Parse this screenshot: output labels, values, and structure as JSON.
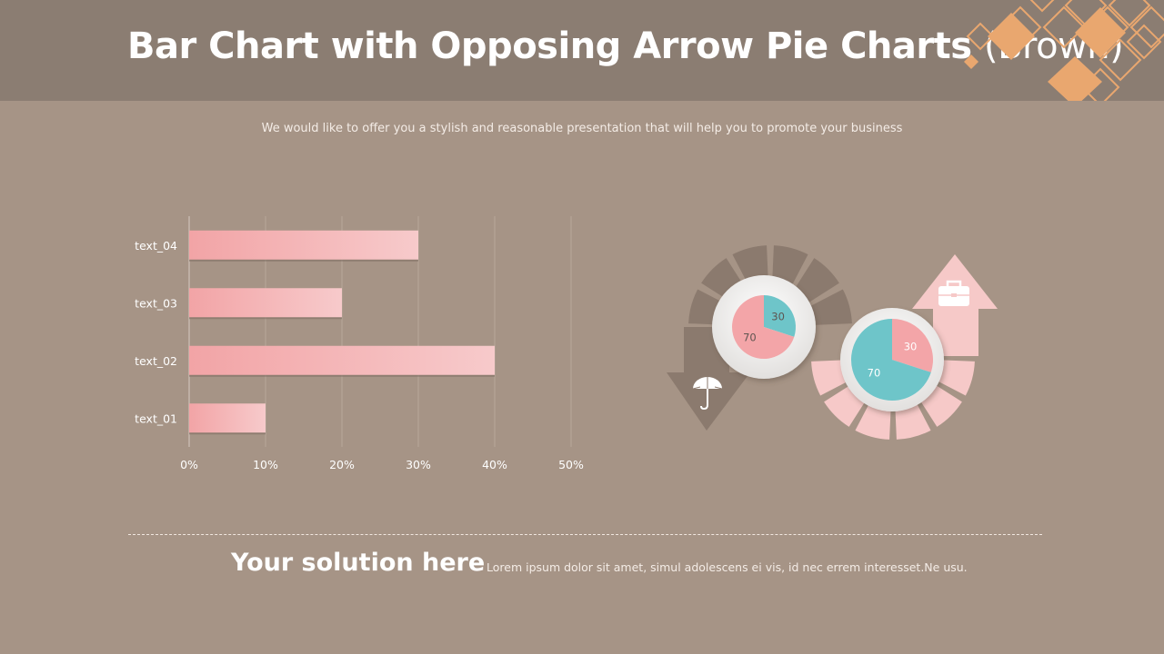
{
  "header": {
    "title_main": "Bar Chart with Opposing Arrow Pie Charts",
    "title_suffix": "(Brown)",
    "subtitle": "We would like to offer you a stylish and reasonable presentation that will help you to promote your business"
  },
  "chart_data": [
    {
      "type": "bar",
      "orientation": "horizontal",
      "categories": [
        "text_01",
        "text_02",
        "text_03",
        "text_04"
      ],
      "values": [
        10,
        40,
        20,
        30
      ],
      "unit": "%",
      "xlim": [
        0,
        50
      ],
      "xticks": [
        "0%",
        "10%",
        "20%",
        "30%",
        "40%",
        "50%"
      ],
      "grid": true,
      "bar_color": "#f3a5a8"
    },
    {
      "type": "pie",
      "labels": [
        "30",
        "70"
      ],
      "values": [
        30,
        70
      ],
      "colors": [
        "#6ec5c9",
        "#f3a5a8"
      ],
      "arrow": "down",
      "arrow_color": "#8b7a6e",
      "icon": "umbrella-icon"
    },
    {
      "type": "pie",
      "labels": [
        "30",
        "70"
      ],
      "values": [
        30,
        70
      ],
      "colors": [
        "#f3a5a8",
        "#6ec5c9"
      ],
      "arrow": "up",
      "arrow_color": "#f6c9c8",
      "icon": "briefcase-icon"
    }
  ],
  "footer": {
    "heading": "Your solution here",
    "text": "Lorem ipsum dolor sit amet, simul adolescens ei vis, id nec errem interesset.Ne usu."
  },
  "colors": {
    "background": "#a69486",
    "header": "#8b7d72",
    "accent_orange": "#e9a76f",
    "pink": "#f3a5a8",
    "teal": "#6ec5c9"
  }
}
